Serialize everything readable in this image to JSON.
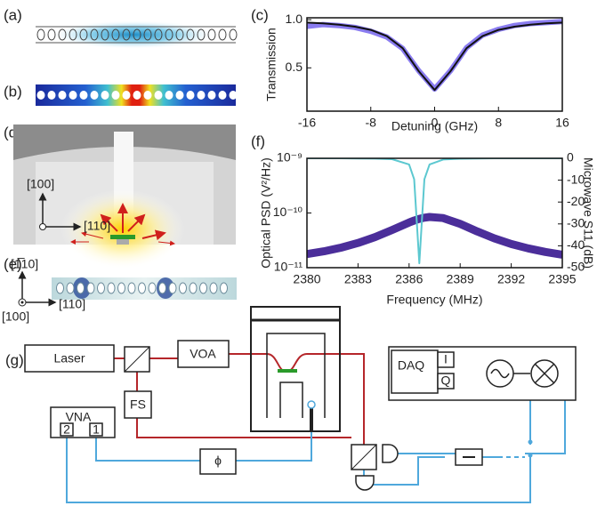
{
  "chart_data": [
    {
      "type": "line",
      "x_label": "Detuning (GHz)",
      "y_label": "Transmission",
      "x": [
        -16,
        -14,
        -12,
        -10,
        -8,
        -6,
        -4,
        -2,
        0,
        2,
        4,
        6,
        8,
        10,
        12,
        14,
        16
      ],
      "xlim": [
        -16,
        16
      ],
      "xticks": [
        -16,
        -8,
        0,
        8,
        16
      ],
      "ylim": [
        0.05,
        1.02
      ],
      "yticks": [
        {
          "value": 1,
          "label": "1.0"
        },
        0.5
      ],
      "series": [
        {
          "color": "#8a7cf0",
          "line_width": 6,
          "values": [
            0.93,
            0.95,
            0.94,
            0.92,
            0.88,
            0.82,
            0.7,
            0.47,
            0.28,
            0.47,
            0.71,
            0.84,
            0.9,
            0.94,
            0.96,
            0.97,
            0.98
          ]
        },
        {
          "color": "#111111",
          "line_width": 2,
          "values": [
            0.97,
            0.962,
            0.949,
            0.928,
            0.894,
            0.83,
            0.704,
            0.466,
            0.27,
            0.466,
            0.704,
            0.83,
            0.894,
            0.928,
            0.949,
            0.962,
            0.97
          ]
        }
      ]
    },
    {
      "type": "line",
      "x_label": "Frequency (MHz)",
      "y_label": "Optical PSD (V²/Hz)",
      "y2_label": "Microwave S11 (dB)",
      "x": [
        2380,
        2381,
        2382,
        2383,
        2384,
        2385,
        2386,
        2386.3,
        2386.6,
        2386.9,
        2387.2,
        2388,
        2389,
        2390,
        2391,
        2392,
        2393,
        2394,
        2395
      ],
      "xlim": [
        2380,
        2395
      ],
      "xticks": [
        2380,
        2383,
        2386,
        2389,
        2392,
        2395
      ],
      "ylog": true,
      "ylim": [
        1e-11,
        1e-09
      ],
      "yticks": [
        {
          "value": 1e-09,
          "label": "10⁻⁹"
        },
        {
          "value": 1e-10,
          "label": "10⁻¹⁰"
        },
        {
          "value": 1e-11,
          "label": "10⁻¹¹"
        }
      ],
      "y2lim": [
        -50,
        0
      ],
      "y2ticks": [
        0,
        -10,
        -20,
        -30,
        -40,
        -50
      ],
      "series": [
        {
          "color": "#4b2e9a",
          "line_width": 9,
          "values": [
            1.77e-11,
            1.99e-11,
            2.32e-11,
            2.83e-11,
            3.63e-11,
            4.9e-11,
            6.71e-11,
            7.28e-11,
            7.8e-11,
            8.21e-11,
            8.45e-11,
            8.09e-11,
            6.32e-11,
            4.6e-11,
            3.44e-11,
            2.71e-11,
            2.25e-11,
            1.94e-11,
            1.73e-11
          ]
        },
        {
          "color": "#5cc8d0",
          "line_width": 2,
          "axis": "y2",
          "values": [
            0,
            0,
            0,
            -0.1,
            -0.16,
            -0.42,
            -2.82,
            -9.6,
            -48,
            -9.6,
            -2.82,
            -0.55,
            -0.19,
            -0.1,
            0,
            0,
            0,
            0,
            0
          ]
        }
      ]
    }
  ],
  "panel_labels": [
    "(a)",
    "(b)",
    "(c)",
    "(d)",
    "(e)",
    "(f)",
    "(g)"
  ],
  "panel_d": {
    "axis_up": "[100]",
    "axis_right": "[110]"
  },
  "panel_e": {
    "axis_up": "[1̅10]",
    "axis_out": "[100]",
    "axis_right": "[110]"
  },
  "panel_g": {
    "laser": "Laser",
    "voa": "VOA",
    "daq": "DAQ",
    "daq_i": "I",
    "daq_q": "Q",
    "vna": "VNA",
    "vna_port_2": "2",
    "vna_port_1": "1",
    "fs": "FS",
    "phase": "ϕ"
  }
}
